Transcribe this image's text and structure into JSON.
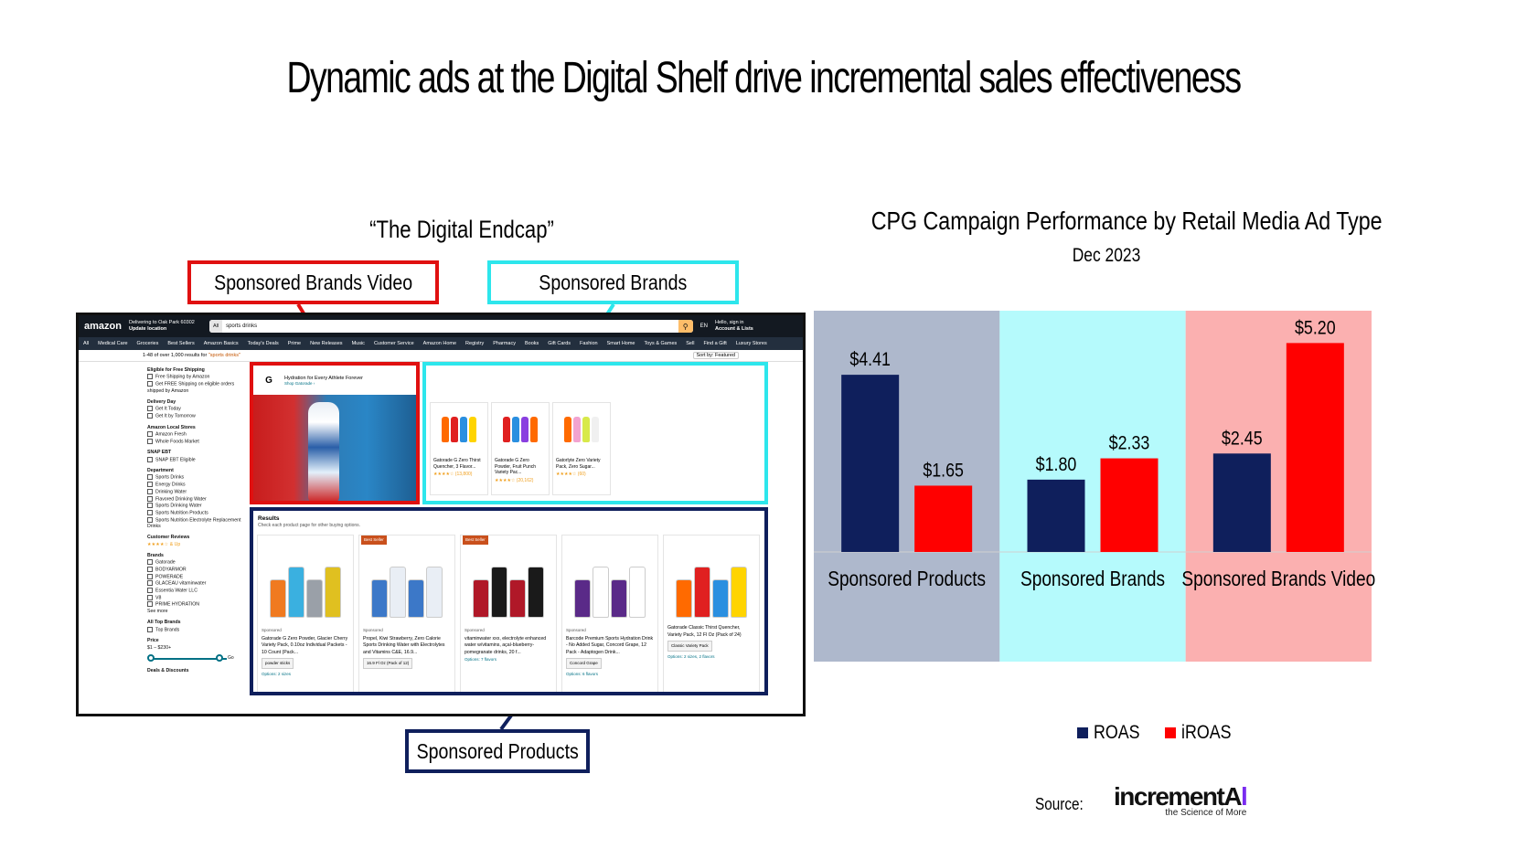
{
  "title": "Dynamic ads at the Digital Shelf drive incremental sales effectiveness",
  "left": {
    "heading": "“The Digital Endcap”",
    "callouts": {
      "sponsored_brands_video": "Sponsored Brands Video",
      "sponsored_brands": "Sponsored Brands",
      "sponsored_products": "Sponsored Products"
    },
    "colors": {
      "sbv": "#e01010",
      "sb": "#2de6ec",
      "sp": "#0f1f5c"
    },
    "amazon": {
      "logo": "amazon",
      "location": [
        "Delivering to Oak Park 60302",
        "Update location"
      ],
      "search_category": "All",
      "search_query": "sports drinks",
      "lang": "EN",
      "account": [
        "Hello, sign in",
        "Account & Lists"
      ],
      "nav": [
        "All",
        "Medical Care",
        "Groceries",
        "Best Sellers",
        "Amazon Basics",
        "Today's Deals",
        "Prime",
        "New Releases",
        "Music",
        "Customer Service",
        "Amazon Home",
        "Registry",
        "Pharmacy",
        "Books",
        "Gift Cards",
        "Fashion",
        "Smart Home",
        "Toys & Games",
        "Sell",
        "Find a Gift",
        "Luxury Stores"
      ],
      "results_count": "1-48 of over 1,000 results for",
      "results_query": "\"sports drinks\"",
      "sort": "Sort by: Featured",
      "sidebar": [
        {
          "h": "Eligible for Free Shipping",
          "items": [
            "Free Shipping by Amazon",
            "Get FREE Shipping on eligible orders shipped by Amazon"
          ]
        },
        {
          "h": "Delivery Day",
          "items": [
            "Get It Today",
            "Get It by Tomorrow"
          ]
        },
        {
          "h": "Amazon Local Stores",
          "items": [
            "Amazon Fresh",
            "Whole Foods Market"
          ]
        },
        {
          "h": "SNAP EBT",
          "items": [
            "SNAP EBT Eligible"
          ]
        },
        {
          "h": "Department",
          "items": [
            "Sports Drinks",
            "Energy Drinks",
            "Drinking Water",
            "Flavored Drinking Water",
            "Sports Drinking Water",
            "Sports Nutrition Products",
            "Sports Nutrition Electrolyte Replacement Drinks"
          ]
        },
        {
          "h": "Customer Reviews",
          "items": [
            "★★★★☆ & Up"
          ]
        },
        {
          "h": "Brands",
          "items": [
            "Gatorade",
            "BODYARMOR",
            "POWERADE",
            "GLACEAU vitaminwater",
            "Essentia Water LLC",
            "V8",
            "PRIME HYDRATION",
            "See more"
          ]
        },
        {
          "h": "All Top Brands",
          "items": [
            "Top Brands"
          ]
        },
        {
          "h": "Price",
          "items": [
            "$1 – $230+"
          ]
        }
      ],
      "price_go": "Go",
      "deals": "Deals & Discounts",
      "sbv": {
        "brand_letter": "G",
        "headline": "Hydration for Every Athlete Forever",
        "link": "Shop Gatorade ›"
      },
      "sb_cards": [
        {
          "title": "Gatorade G Zero Thirst Quencher, 3 Flavor...",
          "rating": "★★★★☆ (13,800)"
        },
        {
          "title": "Gatorade G Zero Powder, Fruit Punch Variety Pac...",
          "rating": "★★★★☆ (20,162)"
        },
        {
          "title": "Gatorlyte Zero Variety Pack, Zero Sugar...",
          "rating": "★★★★☆ (60)"
        }
      ],
      "results_title": "Results",
      "results_sub": "Check each product page for other buying options.",
      "sp_cards": [
        {
          "badge": "",
          "meta": "Sponsored",
          "title": "Gatorade G Zero Powder, Glacier Cherry Variety Pack, 0.10oz Individual Packets - 10 Count (Pack...",
          "pill": "powder sticks",
          "link": "Options: 2 sizes"
        },
        {
          "badge": "Best Seller",
          "meta": "Sponsored",
          "title": "Propel, Kiwi Strawberry, Zero Calorie Sports Drinking Water with Electrolytes and Vitamins C&E, 16.9...",
          "pill": "16.9 Fl Oz (Pack of 12)",
          "link": ""
        },
        {
          "badge": "Best Seller",
          "meta": "Sponsored",
          "title": "vitaminwater xxx, electrolyte enhanced water w/vitamins, açaí-blueberry-pomegranate drinks, 20 f...",
          "pill": "",
          "link": "Options: 7 flavors"
        },
        {
          "badge": "",
          "meta": "Sponsored",
          "title": "Barcode Premium Sports Hydration Drink - No Added Sugar, Concord Grape, 12 Pack - Adaptogen Drink...",
          "pill": "Concord Grape",
          "link": "Options: 6 flavors"
        },
        {
          "badge": "",
          "meta": "",
          "title": "Gatorade Classic Thirst Quencher, Variety Pack, 12 Fl Oz (Pack of 24)",
          "pill": "Classic Variety Pack",
          "link": "Options: 2 sizes, 2 flavors"
        }
      ]
    }
  },
  "chart_data": {
    "type": "bar",
    "title": "CPG Campaign Performance by Retail Media Ad Type",
    "subtitle": "Dec 2023",
    "categories": [
      "Sponsored Products",
      "Sponsored Brands",
      "Sponsored Brands Video"
    ],
    "series": [
      {
        "name": "ROAS",
        "values": [
          4.41,
          1.8,
          2.45
        ],
        "labels": [
          "$4.41",
          "$1.80",
          "$2.45"
        ],
        "color": "#0f1f5c"
      },
      {
        "name": "iROAS",
        "values": [
          1.65,
          2.33,
          5.2
        ],
        "labels": [
          "$1.65",
          "$2.33",
          "$5.20"
        ],
        "color": "#ff0000"
      }
    ],
    "category_backgrounds": [
      "#aeb8cc",
      "#b5fafc",
      "#fbb0b0"
    ],
    "ylim": [
      0,
      6
    ],
    "legend_position": "bottom",
    "grid": false
  },
  "source": {
    "label": "Source:",
    "brand_main": "incrementA",
    "brand_ai": "l",
    "tagline": "the Science of More"
  }
}
